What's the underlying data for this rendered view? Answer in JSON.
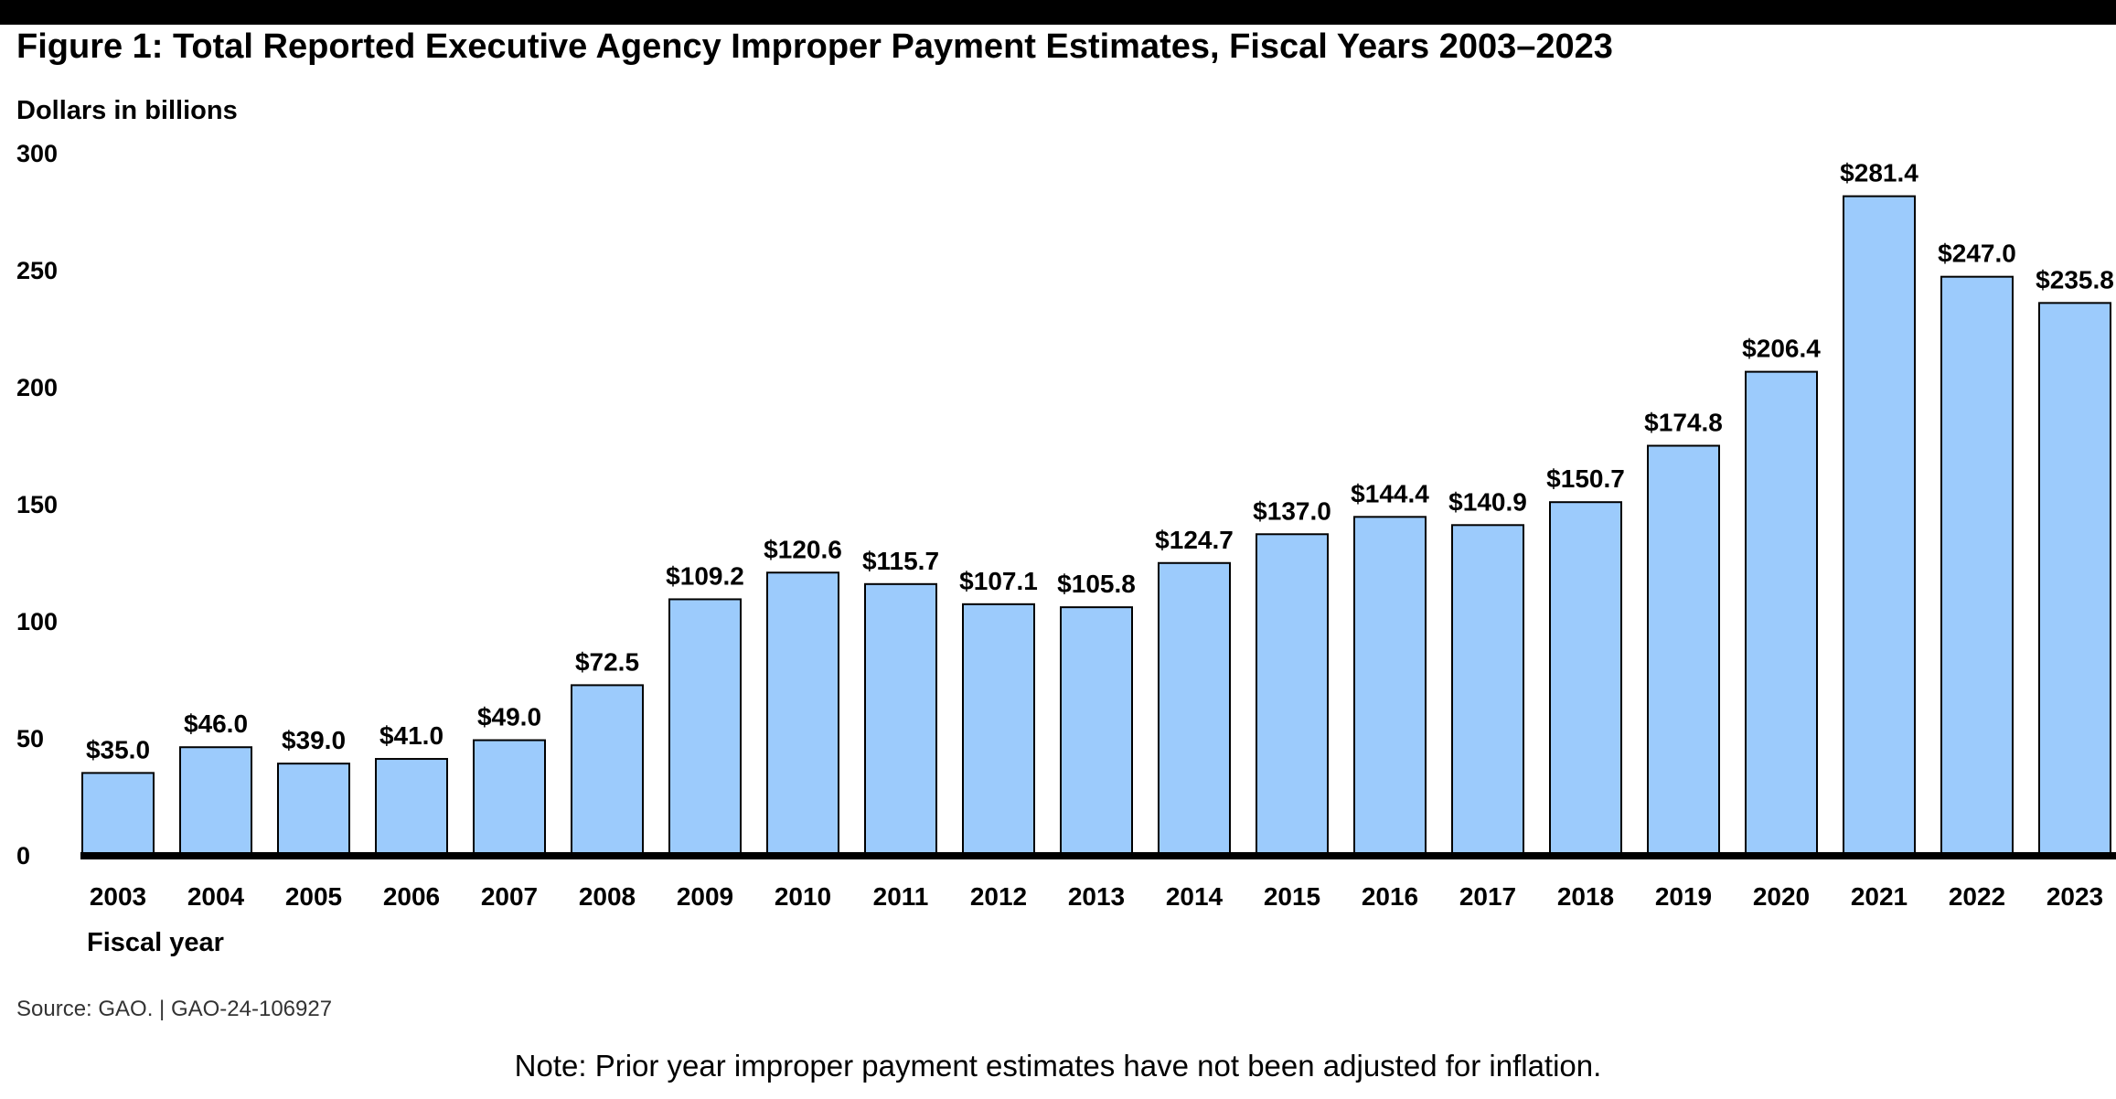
{
  "figure": {
    "title": "Figure 1: Total Reported Executive Agency Improper Payment Estimates, Fiscal Years 2003–2023",
    "source": "Source: GAO.  |  GAO-24-106927",
    "note": "Note: Prior year improper payment estimates have not been adjusted for inflation."
  },
  "chart_data": {
    "type": "bar",
    "title": "Figure 1: Total Reported Executive Agency Improper Payment Estimates, Fiscal Years 2003–2023",
    "ylabel": "Dollars in billions",
    "xlabel": "Fiscal year",
    "categories": [
      "2003",
      "2004",
      "2005",
      "2006",
      "2007",
      "2008",
      "2009",
      "2010",
      "2011",
      "2012",
      "2013",
      "2014",
      "2015",
      "2016",
      "2017",
      "2018",
      "2019",
      "2020",
      "2021",
      "2022",
      "2023"
    ],
    "values": [
      35.0,
      46.0,
      39.0,
      41.0,
      49.0,
      72.5,
      109.2,
      120.6,
      115.7,
      107.1,
      105.8,
      124.7,
      137.0,
      144.4,
      140.9,
      150.7,
      174.8,
      206.4,
      281.4,
      247.0,
      235.8
    ],
    "data_labels": [
      "$35.0",
      "$46.0",
      "$39.0",
      "$41.0",
      "$49.0",
      "$72.5",
      "$109.2",
      "$120.6",
      "$115.7",
      "$107.1",
      "$105.8",
      "$124.7",
      "$137.0",
      "$144.4",
      "$140.9",
      "$150.7",
      "$174.8",
      "$206.4",
      "$281.4",
      "$247.0",
      "$235.8"
    ],
    "ylim": [
      0,
      300
    ],
    "yticks": [
      "0",
      "50",
      "100",
      "150",
      "200",
      "250",
      "300"
    ],
    "grid": false,
    "legend": "none",
    "bar_color": "#9ccbfc",
    "bar_edge_color": "#000000",
    "axis_color": "#000000"
  }
}
